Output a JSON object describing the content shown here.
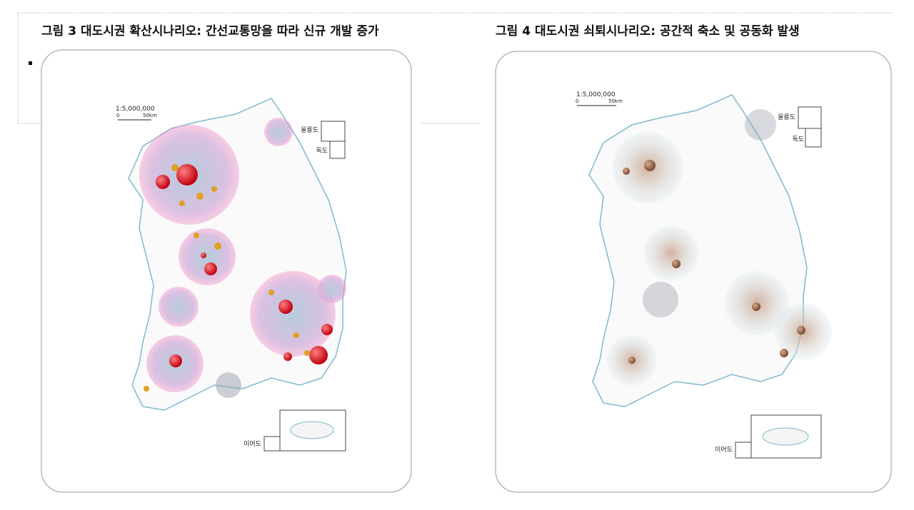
{
  "figures": [
    {
      "caption": "그림 3  대도시권 확산시나리오: 간선교통망을 따라 신규 개발 증가",
      "scale": {
        "ratio": "1:5,000,000",
        "zero": "0",
        "distance": "50km"
      },
      "insets": {
        "ulleung": "울릉도",
        "dokdo": "독도",
        "ieodo": "이어도"
      }
    },
    {
      "caption": "그림 4  대도시권 쇠퇴시나리오: 공간적 축소 및 공동화 발생",
      "scale": {
        "ratio": "1:5,000,000",
        "zero": "0",
        "distance": "50km"
      },
      "insets": {
        "ulleung": "울릉도",
        "dokdo": "독도",
        "ieodo": "이어도"
      }
    }
  ]
}
